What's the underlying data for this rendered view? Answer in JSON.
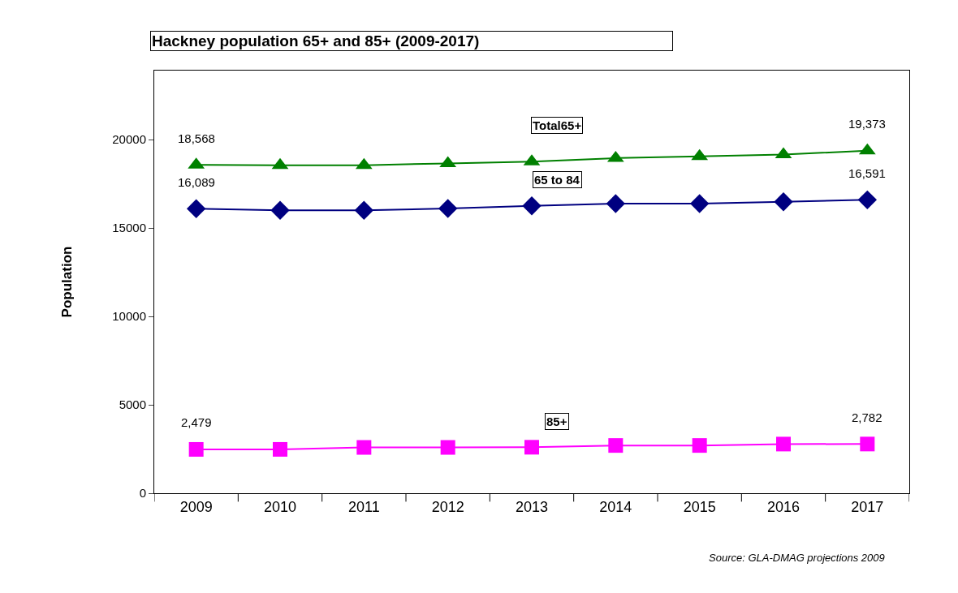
{
  "chart_data": {
    "type": "line",
    "title": "Hackney population 65+ and 85+ (2009-2017)",
    "ylabel": "Population",
    "categories": [
      "2009",
      "2010",
      "2011",
      "2012",
      "2013",
      "2014",
      "2015",
      "2016",
      "2017"
    ],
    "series": [
      {
        "name": "Total65+",
        "color": "#008000",
        "marker": "triangle",
        "values": [
          18568,
          18550,
          18550,
          18650,
          18750,
          18950,
          19050,
          19150,
          19373
        ],
        "value_labels": [
          "18,568",
          null,
          null,
          null,
          null,
          null,
          null,
          null,
          "19,373"
        ]
      },
      {
        "name": "65 to 84",
        "color": "#000080",
        "marker": "diamond",
        "values": [
          16089,
          16000,
          16000,
          16100,
          16250,
          16380,
          16380,
          16480,
          16591
        ],
        "value_labels": [
          "16,089",
          null,
          null,
          null,
          null,
          null,
          null,
          null,
          "16,591"
        ]
      },
      {
        "name": "85+",
        "color": "#ff00ff",
        "marker": "square",
        "values": [
          2479,
          2480,
          2590,
          2590,
          2600,
          2700,
          2700,
          2780,
          2782
        ],
        "value_labels": [
          "2,479",
          null,
          null,
          null,
          null,
          null,
          null,
          null,
          "2,782"
        ]
      }
    ],
    "ylim": [
      0,
      23900
    ],
    "yticks": [
      0,
      5000,
      10000,
      15000,
      20000
    ],
    "legend": false,
    "annotations": [
      "Source: GLA-DMAG projections 2009"
    ]
  }
}
